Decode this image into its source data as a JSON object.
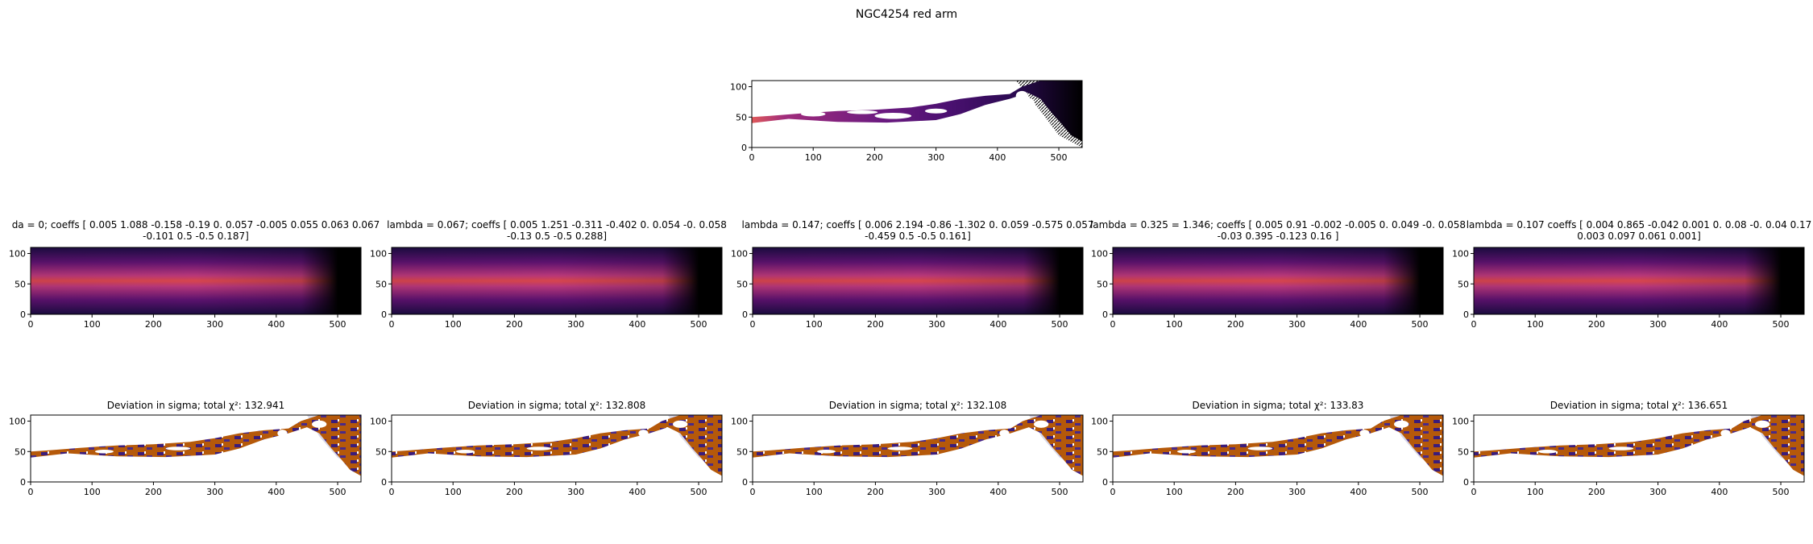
{
  "figure": {
    "title": "NGC4254 red arm"
  },
  "chart_data": [
    {
      "type": "heatmap",
      "role": "data-map",
      "title": "",
      "xlim": [
        0,
        538
      ],
      "ylim": [
        0,
        110
      ],
      "xticks": [
        0,
        100,
        200,
        300,
        400,
        500
      ],
      "yticks": [
        0,
        50,
        100
      ],
      "colormap": "inferno/magma"
    },
    {
      "type": "heatmap",
      "role": "model",
      "title_lines": [
        "da = 0; coeffs [ 0.005  1.088 -0.158 -0.19   0.     0.057 -0.005  0.055 0.063  0.067",
        "-0.101  0.5   -0.5    0.187]"
      ],
      "xlim": [
        0,
        538
      ],
      "ylim": [
        0,
        110
      ],
      "xticks": [
        0,
        100,
        200,
        300,
        400,
        500
      ],
      "yticks": [
        0,
        50,
        100
      ]
    },
    {
      "type": "heatmap",
      "role": "model",
      "title_lines": [
        "lambda = 0.067; coeffs [ 0.005  1.251 -0.311 -0.402  0.     0.054 -0.     0.058",
        "-0.13   0.5   -0.5    0.288]"
      ],
      "xlim": [
        0,
        538
      ],
      "ylim": [
        0,
        110
      ],
      "xticks": [
        0,
        100,
        200,
        300,
        400,
        500
      ],
      "yticks": [
        0,
        50,
        100
      ]
    },
    {
      "type": "heatmap",
      "role": "model",
      "title_lines": [
        "lambda = 0.147; coeffs [ 0.006  2.194 -0.86  -1.302  0.     0.059 -0.575  0.057",
        "-0.459  0.5   -0.5    0.161]"
      ],
      "xlim": [
        0,
        538
      ],
      "ylim": [
        0,
        110
      ],
      "xticks": [
        0,
        100,
        200,
        300,
        400,
        500
      ],
      "yticks": [
        0,
        50,
        100
      ]
    },
    {
      "type": "heatmap",
      "role": "model",
      "title_lines": [
        "lambda = 0.325 = 1.346; coeffs [ 0.005  0.91  -0.002 -0.005  0.     0.049 -0.     0.058",
        "-0.03   0.395 -0.123  0.16 ]"
      ],
      "xlim": [
        0,
        538
      ],
      "ylim": [
        0,
        110
      ],
      "xticks": [
        0,
        100,
        200,
        300,
        400,
        500
      ],
      "yticks": [
        0,
        50,
        100
      ]
    },
    {
      "type": "heatmap",
      "role": "model",
      "title_lines": [
        "lambda = 0.107 coeffs [ 0.004  0.865 -0.042  0.001  0.     0.08  -0.     0.04   0.17",
        "0.003  0.097  0.061  0.001]"
      ],
      "xlim": [
        0,
        538
      ],
      "ylim": [
        0,
        110
      ],
      "xticks": [
        0,
        100,
        200,
        300,
        400,
        500
      ],
      "yticks": [
        0,
        50,
        100
      ]
    },
    {
      "type": "heatmap",
      "role": "deviation",
      "title": "Deviation in sigma; total χ²: 132.941",
      "xlim": [
        0,
        538
      ],
      "ylim": [
        0,
        110
      ],
      "xticks": [
        0,
        100,
        200,
        300,
        400,
        500
      ],
      "yticks": [
        0,
        50,
        100
      ]
    },
    {
      "type": "heatmap",
      "role": "deviation",
      "title": "Deviation in sigma; total χ²: 132.808",
      "xlim": [
        0,
        538
      ],
      "ylim": [
        0,
        110
      ],
      "xticks": [
        0,
        100,
        200,
        300,
        400,
        500
      ],
      "yticks": [
        0,
        50,
        100
      ]
    },
    {
      "type": "heatmap",
      "role": "deviation",
      "title": "Deviation in sigma; total χ²: 132.108",
      "xlim": [
        0,
        538
      ],
      "ylim": [
        0,
        110
      ],
      "xticks": [
        0,
        100,
        200,
        300,
        400,
        500
      ],
      "yticks": [
        0,
        50,
        100
      ]
    },
    {
      "type": "heatmap",
      "role": "deviation",
      "title": "Deviation in sigma; total χ²: 133.83",
      "xlim": [
        0,
        538
      ],
      "ylim": [
        0,
        110
      ],
      "xticks": [
        0,
        100,
        200,
        300,
        400,
        500
      ],
      "yticks": [
        0,
        50,
        100
      ]
    },
    {
      "type": "heatmap",
      "role": "deviation",
      "title": "Deviation in sigma; total χ²: 136.651",
      "xlim": [
        0,
        538
      ],
      "ylim": [
        0,
        110
      ],
      "xticks": [
        0,
        100,
        200,
        300,
        400,
        500
      ],
      "yticks": [
        0,
        50,
        100
      ]
    }
  ]
}
